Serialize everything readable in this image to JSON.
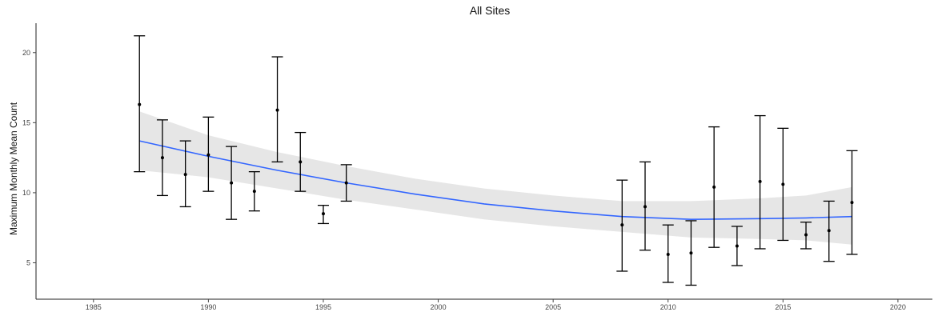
{
  "chart_data": {
    "type": "scatter",
    "title": "All Sites",
    "xlabel": "",
    "ylabel": "Maximum Monthly Mean Count",
    "xlim": [
      1982.5,
      2021.5
    ],
    "ylim": [
      2.4,
      22.1
    ],
    "x_ticks": [
      1985,
      1990,
      1995,
      2000,
      2005,
      2010,
      2015,
      2020
    ],
    "y_ticks": [
      5,
      10,
      15,
      20
    ],
    "grid": false,
    "legend": "none",
    "colors": {
      "points": "#000000",
      "error_bars": "#000000",
      "smooth_line": "#3366ff",
      "confidence_band": "#e6e6e6"
    },
    "series": [
      {
        "type": "points_with_error_bars",
        "x": [
          1987,
          1988,
          1989,
          1990,
          1991,
          1992,
          1993,
          1994,
          1995,
          1996,
          2008,
          2009,
          2010,
          2011,
          2012,
          2013,
          2014,
          2015,
          2016,
          2017,
          2018
        ],
        "y": [
          16.3,
          12.5,
          11.3,
          12.7,
          10.7,
          10.1,
          15.9,
          12.2,
          8.5,
          10.7,
          7.7,
          9.0,
          5.6,
          5.7,
          10.4,
          6.2,
          10.8,
          10.6,
          7.0,
          7.3,
          9.3
        ],
        "y_low": [
          11.5,
          9.8,
          9.0,
          10.1,
          8.1,
          8.7,
          12.2,
          10.1,
          7.8,
          9.4,
          4.4,
          5.9,
          3.6,
          3.4,
          6.1,
          4.8,
          6.0,
          6.6,
          6.0,
          5.1,
          5.6
        ],
        "y_high": [
          21.2,
          15.2,
          13.7,
          15.4,
          13.3,
          11.5,
          19.7,
          14.3,
          9.1,
          12.0,
          10.9,
          12.2,
          7.7,
          8.0,
          14.7,
          7.6,
          15.5,
          14.6,
          7.9,
          9.4,
          13.0
        ]
      },
      {
        "type": "smooth_line",
        "x": [
          1987,
          1990,
          1993,
          1996,
          1999,
          2002,
          2005,
          2008,
          2011,
          2014,
          2016,
          2018
        ],
        "y": [
          13.7,
          12.6,
          11.6,
          10.7,
          9.9,
          9.2,
          8.7,
          8.3,
          8.1,
          8.15,
          8.2,
          8.3
        ],
        "band_low": [
          11.6,
          11.1,
          10.3,
          9.5,
          8.8,
          8.1,
          7.6,
          7.2,
          6.8,
          6.7,
          6.6,
          6.3
        ],
        "band_high": [
          15.8,
          14.1,
          12.9,
          11.9,
          11.0,
          10.3,
          9.8,
          9.4,
          9.4,
          9.6,
          9.8,
          10.4
        ]
      }
    ]
  }
}
